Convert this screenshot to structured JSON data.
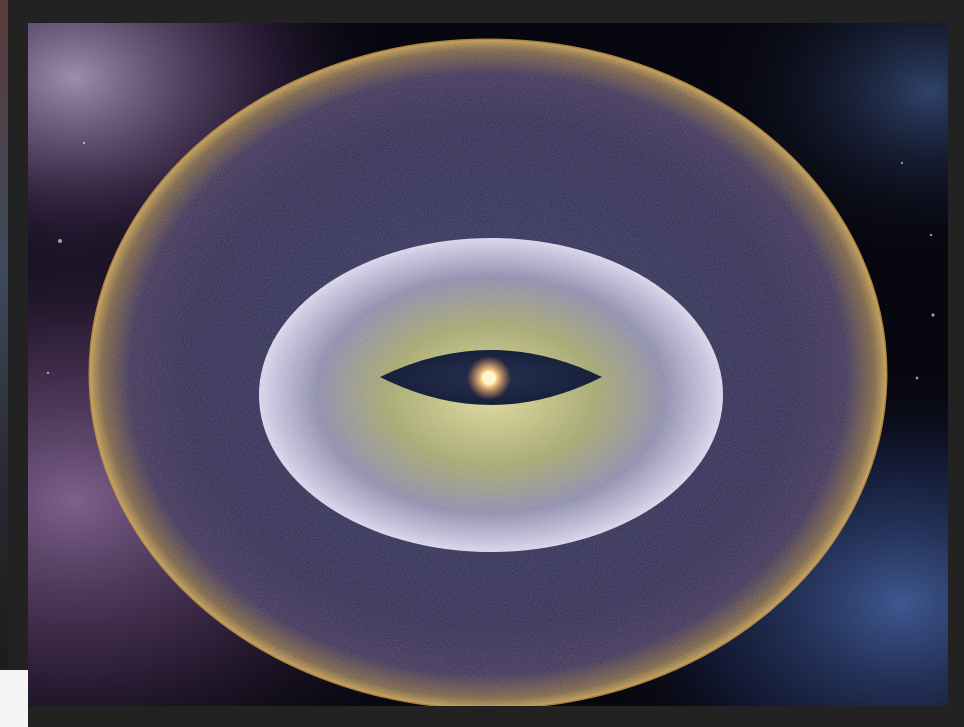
{
  "image": {
    "subject": "",
    "colors": {
      "frame": "#222222",
      "space": "#07070f",
      "outer_shell_rim": "#b08a3e",
      "outer_shell_fill": "#2a2850",
      "inner_cloud": "#c7c2e0",
      "inner_cloud_core": "#a9ad6a",
      "central_gap": "#1c2540",
      "star": "#ffd59a",
      "nebula_left": "#6b4a7a",
      "nebula_right": "#3a5a9a"
    }
  }
}
